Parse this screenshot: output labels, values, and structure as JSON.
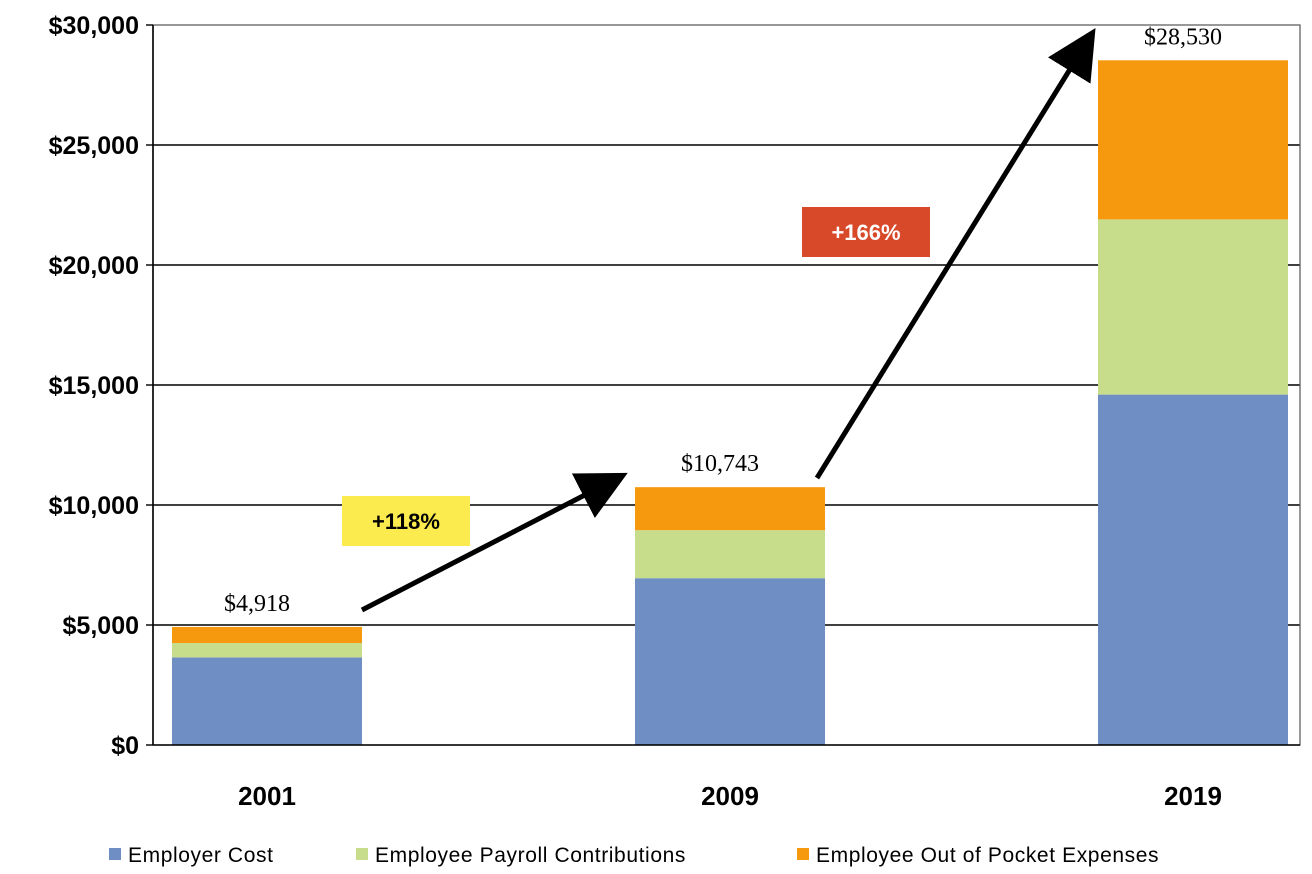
{
  "chart_data": {
    "type": "bar",
    "stacked": true,
    "categories": [
      "2001",
      "2009",
      "2019"
    ],
    "series": [
      {
        "name": "Employer Cost",
        "color": "#6F8FC4",
        "values": [
          3650,
          6950,
          14600
        ]
      },
      {
        "name": "Employee Payroll Contributions",
        "color": "#C8DD8C",
        "values": [
          600,
          2000,
          7300
        ]
      },
      {
        "name": "Employee Out of Pocket Expenses",
        "color": "#F7990F",
        "values": [
          668,
          1793,
          6630
        ]
      }
    ],
    "totals": [
      "$4,918",
      "$10,743",
      "$28,530"
    ],
    "yticks": [
      "$0",
      "$5,000",
      "$10,000",
      "$15,000",
      "$20,000",
      "$25,000",
      "$30,000"
    ],
    "ylim": [
      0,
      30000
    ],
    "grid": true,
    "legend_position": "bottom",
    "annotations": [
      {
        "text": "+118%",
        "bg": "#FCEB4F",
        "color": "#000000"
      },
      {
        "text": "+166%",
        "bg": "#D8492A",
        "color": "#ffffff"
      }
    ]
  }
}
